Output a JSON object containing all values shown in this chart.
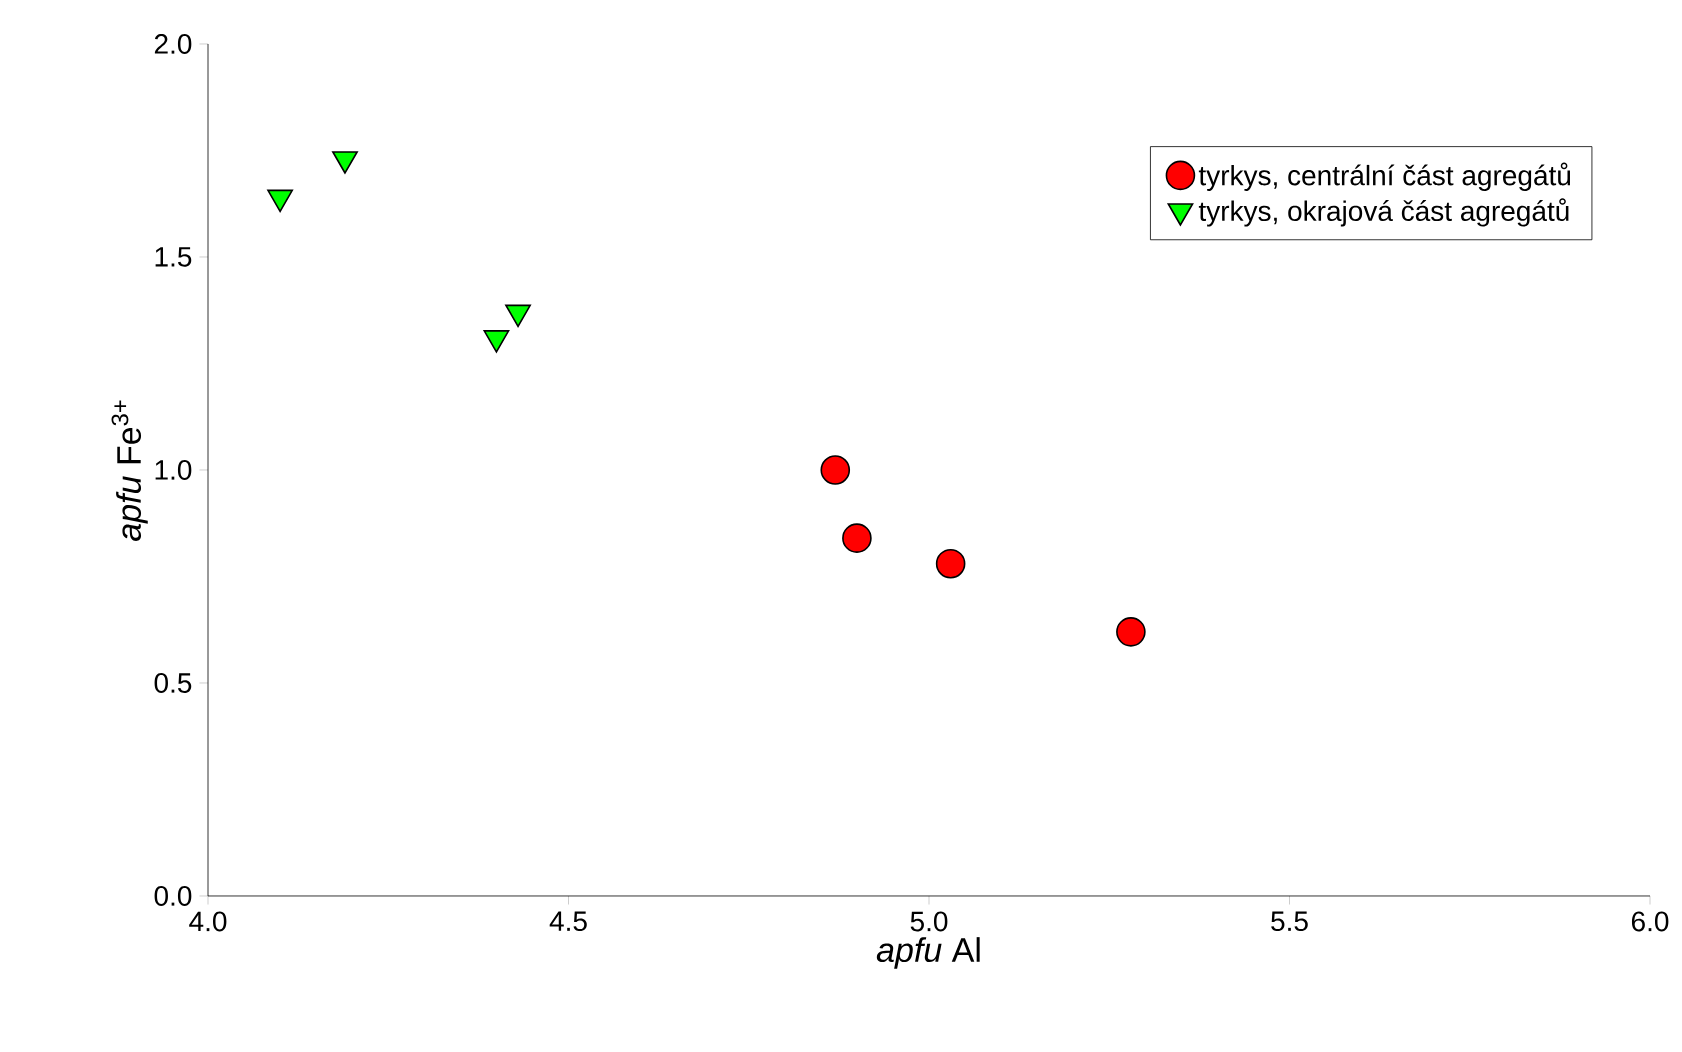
{
  "chart_data": {
    "type": "scatter",
    "xlabel": "*apfu* Al",
    "ylabel": "*apfu* Fe$^{3+}$",
    "xlim": [
      4.0,
      6.0
    ],
    "ylim": [
      0.0,
      2.0
    ],
    "xticks": [
      {
        "value": 4.0,
        "label": "4.0"
      },
      {
        "value": 4.5,
        "label": "4.5"
      },
      {
        "value": 5.0,
        "label": "5.0"
      },
      {
        "value": 5.5,
        "label": "5.5"
      },
      {
        "value": 6.0,
        "label": "6.0"
      }
    ],
    "yticks": [
      {
        "value": 0.0,
        "label": "0.0"
      },
      {
        "value": 0.5,
        "label": "0.5"
      },
      {
        "value": 1.0,
        "label": "1.0"
      },
      {
        "value": 1.5,
        "label": "1.5"
      },
      {
        "value": 2.0,
        "label": "2.0"
      }
    ],
    "grid": false,
    "legend": "top right",
    "series": [
      {
        "name": "tyrkys, centrální část agregátů",
        "color": "#ff0000",
        "marker": "circle",
        "x": [
          4.87,
          4.9,
          5.03,
          5.28
        ],
        "values": [
          1.0,
          0.84,
          0.78,
          0.62
        ]
      },
      {
        "name": "tyrkys, okrajová část agregátů",
        "color": "#00ff00",
        "marker": "triangle",
        "x": [
          4.1,
          4.19,
          4.4,
          4.43
        ],
        "values": [
          1.64,
          1.73,
          1.31,
          1.37
        ]
      }
    ]
  }
}
